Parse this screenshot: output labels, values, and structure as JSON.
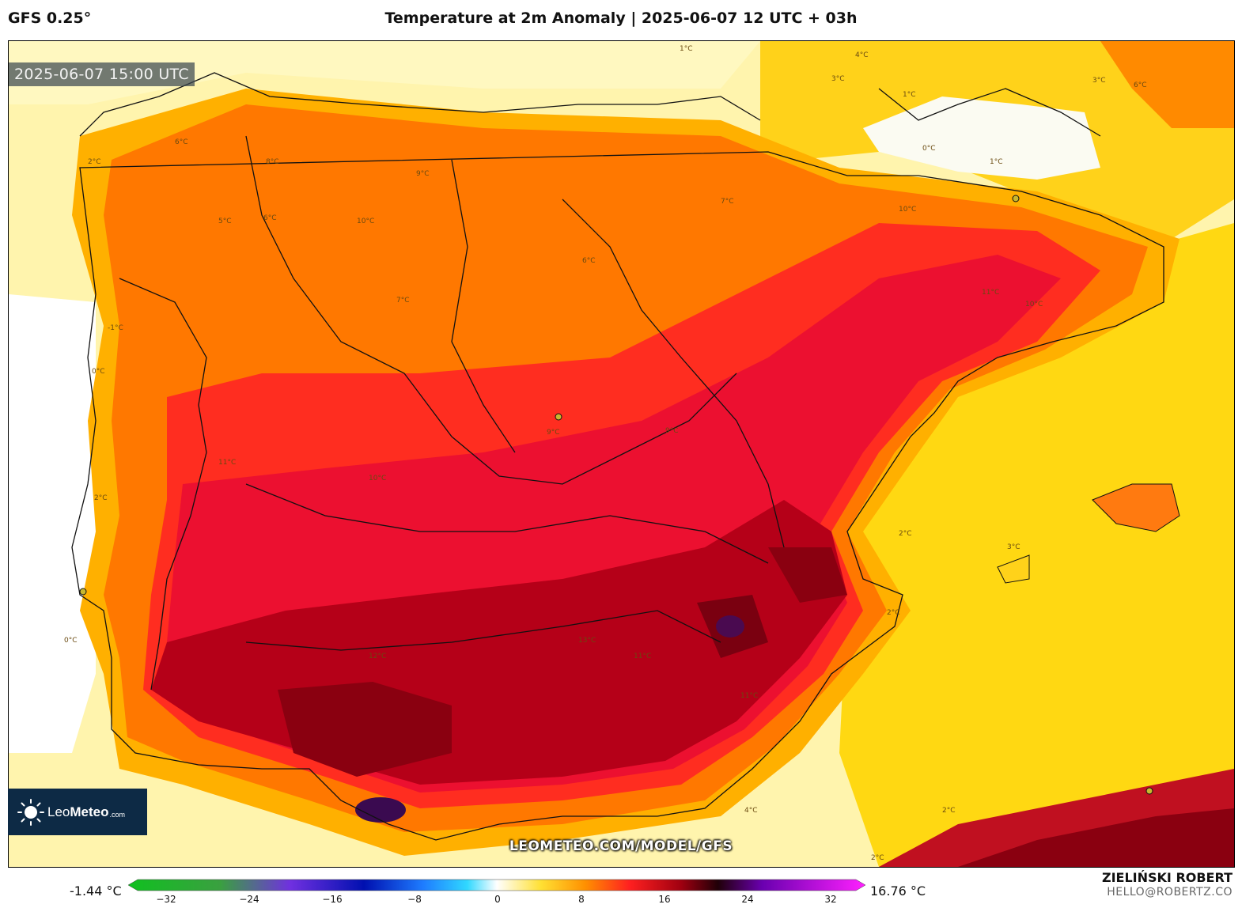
{
  "header": {
    "model": "GFS 0.25°",
    "title": "Temperature at 2m Anomaly | 2025-06-07 12 UTC + 03h"
  },
  "map": {
    "valid_time": "2025-06-07 15:00 UTC",
    "watermark": "LEOMETEO.COM/MODEL/GFS",
    "region": "Iberian Peninsula",
    "contour_labels": [
      "1°C",
      "4°C",
      "3°C",
      "1°C",
      "0°C",
      "1°C",
      "6°C",
      "2°C",
      "5°C",
      "6°C",
      "8°C",
      "9°C",
      "10°C",
      "7°C",
      "6°C",
      "7°C",
      "10°C",
      "11°C",
      "10°C",
      "9°C",
      "9°C",
      "10°C",
      "11°C",
      "12°C",
      "11°C",
      "13°C",
      "11°C",
      "2°C",
      "3°C",
      "2°C",
      "2°C",
      "2°C",
      "4°C",
      "0°C",
      "-1°C",
      "0°C",
      "2°C",
      "6°C",
      "3°C"
    ],
    "colors": {
      "far": "#fff3a8",
      "yellow": "#ffe033",
      "gold": "#ffc21a",
      "orange": "#ff7a00",
      "dark_orange": "#ff5a10",
      "red": "#ff2a2a",
      "crimson": "#e0102a",
      "dark_red": "#b0001a",
      "maroon": "#800010",
      "purple": "#3a0a50"
    }
  },
  "logo": {
    "brand_light": "Leo",
    "brand_bold": "Meteo",
    "brand_suffix": ".com"
  },
  "colorbar": {
    "min_label": "-1.44 °C",
    "max_label": "16.76 °C",
    "ticks": [
      "−32",
      "−24",
      "−16",
      "−8",
      "0",
      "8",
      "16",
      "24",
      "32"
    ]
  },
  "credits": {
    "author": "ZIELIŃSKI ROBERT",
    "email": "HELLO@ROBERTZ.CO"
  }
}
